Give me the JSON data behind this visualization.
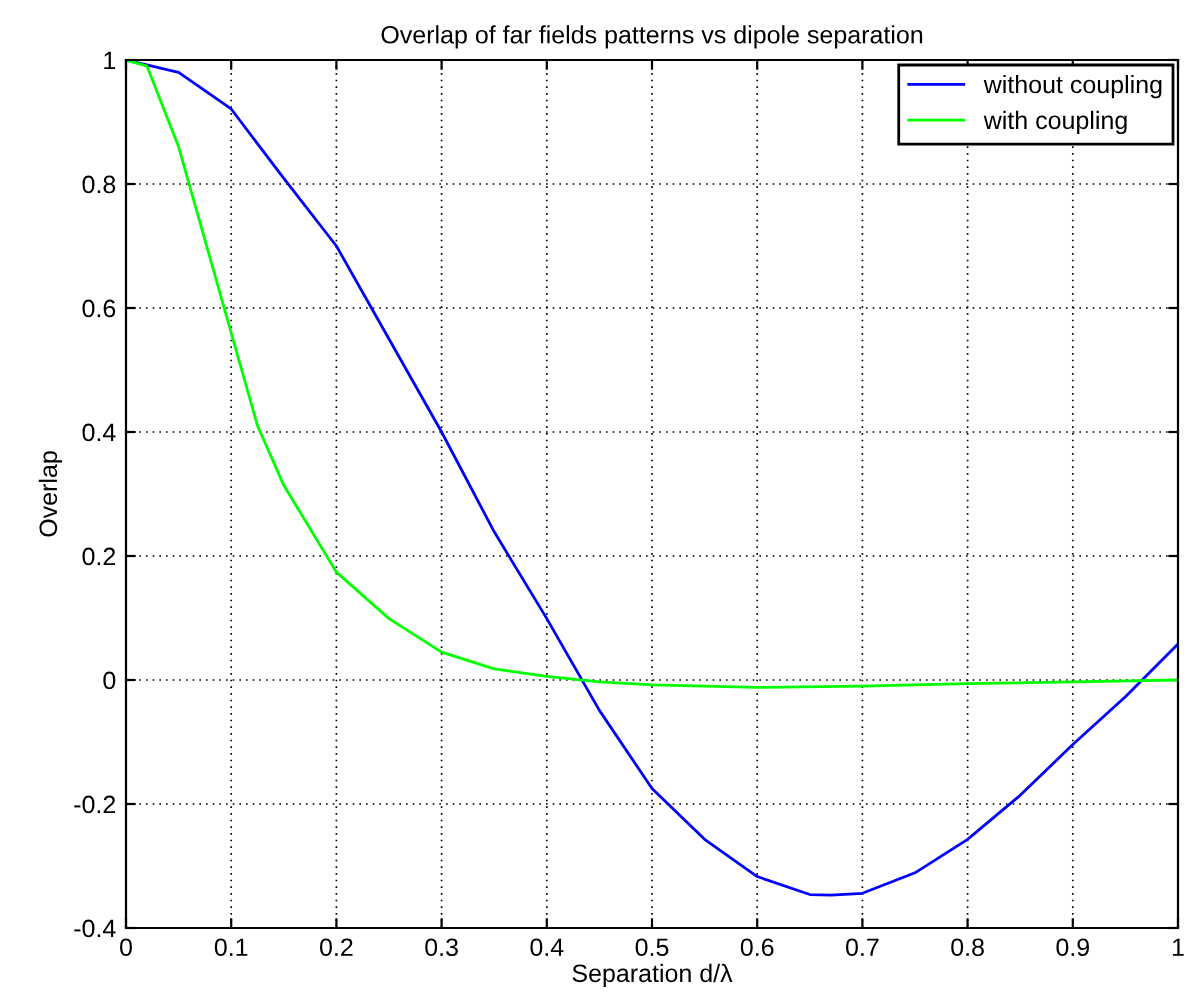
{
  "chart_data": {
    "type": "line",
    "title": "Overlap of far fields patterns vs dipole separation",
    "xlabel": "Separation d/λ",
    "ylabel": "Overlap",
    "xlim": [
      0,
      1
    ],
    "ylim": [
      -0.4,
      1
    ],
    "xticks": [
      0,
      0.1,
      0.2,
      0.3,
      0.4,
      0.5,
      0.6,
      0.7,
      0.8,
      0.9,
      1
    ],
    "yticks": [
      -0.4,
      -0.2,
      0,
      0.2,
      0.4,
      0.6,
      0.8,
      1
    ],
    "grid": true,
    "legend": "top right",
    "marker": "none",
    "line_style": "solid",
    "series": [
      {
        "name": "without coupling",
        "color": "#0000ff",
        "x": [
          0,
          0.05,
          0.1,
          0.15,
          0.2,
          0.25,
          0.3,
          0.35,
          0.4,
          0.45,
          0.5,
          0.55,
          0.6,
          0.65,
          0.67,
          0.7,
          0.75,
          0.8,
          0.85,
          0.9,
          0.95,
          1
        ],
        "values": [
          1,
          0.98,
          0.921,
          0.809,
          0.7,
          0.55,
          0.4,
          0.239,
          0.099,
          -0.049,
          -0.175,
          -0.257,
          -0.317,
          -0.346,
          -0.347,
          -0.344,
          -0.311,
          -0.257,
          -0.186,
          -0.104,
          -0.027,
          0.058
        ]
      },
      {
        "name": "with coupling",
        "color": "#00ff00",
        "x": [
          0,
          0.02,
          0.05,
          0.075,
          0.1,
          0.125,
          0.15,
          0.2,
          0.25,
          0.3,
          0.35,
          0.4,
          0.45,
          0.5,
          0.6,
          0.7,
          0.8,
          0.9,
          1
        ],
        "values": [
          1,
          0.99,
          0.86,
          0.71,
          0.56,
          0.41,
          0.314,
          0.174,
          0.099,
          0.045,
          0.018,
          0.006,
          -0.003,
          -0.008,
          -0.012,
          -0.01,
          -0.006,
          -0.003,
          0
        ]
      }
    ]
  }
}
